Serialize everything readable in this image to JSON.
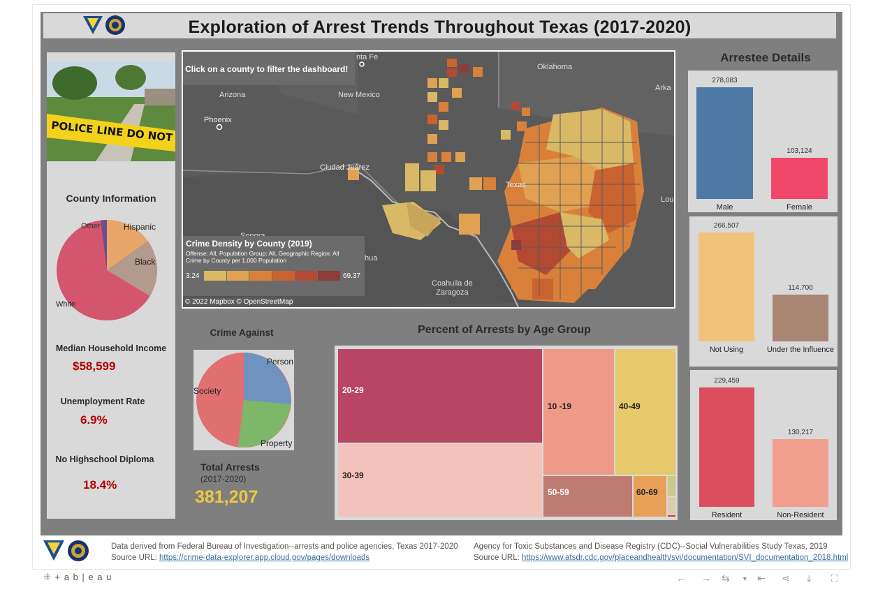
{
  "title": "Exploration of Arrest Trends Throughout Texas (2017-2020)",
  "map": {
    "hint": "Click on a county to filter the dashboard!",
    "legend_title": "Crime Density by County (2019)",
    "legend_subtitle": "Offense: All, Population Group: All, Geographic Region: All",
    "legend_subtitle2": "Crime by County per 1,000 Population",
    "legend_min": "3.24",
    "legend_max": "69.37",
    "legend_colors": [
      "#d9b866",
      "#e0a252",
      "#d9813a",
      "#c9632f",
      "#b24a33",
      "#8e3b3b"
    ],
    "attribution": "© 2022 Mapbox  © OpenStreetMap",
    "labels": {
      "santa_fe": "nta Fe",
      "oklahoma": "Oklahoma",
      "arizona": "Arizona",
      "new_mexico": "New Mexico",
      "phoenix": "Phoenix",
      "ciudad_juarez": "Ciudad Juárez",
      "texas": "Texas",
      "sonora": "Sonora",
      "chihuahua": "hua",
      "coahuila": "Coahuila de\nZaragoza",
      "arkansas": "Arka",
      "louisiana": "Lou"
    }
  },
  "county": {
    "title": "County Information",
    "pie_labels": {
      "hispanic": "Hispanic",
      "black": "Black",
      "white": "White",
      "other": "Other"
    },
    "pie_colors": {
      "hispanic": "#e9a66a",
      "black": "#b39a8e",
      "white": "#d4566e",
      "other": "#6c4f8f"
    },
    "income_label": "Median Household Income",
    "income_value": "$58,599",
    "unemp_label": "Unemployment Rate",
    "unemp_value": "6.9%",
    "diploma_label": "No Highschool Diploma",
    "diploma_value": "18.4%"
  },
  "crime_against": {
    "title": "Crime Against",
    "labels": {
      "person": "Person",
      "society": "Society",
      "property": "Property"
    },
    "colors": {
      "person": "#7092bf",
      "society": "#e07070",
      "property": "#7cb76a"
    }
  },
  "total": {
    "label": "Total Arrests",
    "sub": "(2017-2020)",
    "value": "381,207"
  },
  "age": {
    "title": "Percent of Arrests by Age Group",
    "cells": [
      {
        "label": "20-29",
        "color": "#b84563",
        "text": "#ffffff"
      },
      {
        "label": "30-39",
        "color": "#f3c2ba",
        "text": "#222222"
      },
      {
        "label": "10 -19",
        "color": "#ef9a88",
        "text": "#222222"
      },
      {
        "label": "40-49",
        "color": "#e6c96a",
        "text": "#222222"
      },
      {
        "label": "50-59",
        "color": "#bd7b72",
        "text": "#ffffff"
      },
      {
        "label": "60-69",
        "color": "#e8a058",
        "text": "#222222"
      }
    ]
  },
  "arrestee": {
    "title": "Arrestee Details",
    "gender": [
      {
        "label": "Male",
        "value": "278,083",
        "color": "#4e79a7"
      },
      {
        "label": "Female",
        "value": "103,124",
        "color": "#f1486a"
      }
    ],
    "influence": [
      {
        "label": "Not Using",
        "value": "266,507",
        "color": "#f0c27a"
      },
      {
        "label": "Under the Influence",
        "value": "114,700",
        "color": "#a88472"
      }
    ],
    "residency": [
      {
        "label": "Resident",
        "value": "229,459",
        "color": "#dc4d5e"
      },
      {
        "label": "Non-Resident",
        "value": "130,217",
        "color": "#f29e8e"
      }
    ]
  },
  "footer": {
    "left_line1": "Data derived from Federal Bureau of Investigation--arrests and police agencies, Texas 2017-2020",
    "left_label": "Source URL: ",
    "left_url": "https://crime-data-explorer.app.cloud.gov/pages/downloads",
    "right_line1": "Agency for Toxic Substances and Disease Registry (CDC)--Social Vulnerabilities Study Texas, 2019",
    "right_label": "Source URL: ",
    "right_url": "https://www.atsdr.cdc.gov/placeandhealth/svi/documentation/SVI_documentation_2018.html"
  },
  "toolbar": {
    "brand": "+ a b | e a u"
  },
  "photo": {
    "text": "POLICE LINE DO NOT CROSS"
  }
}
